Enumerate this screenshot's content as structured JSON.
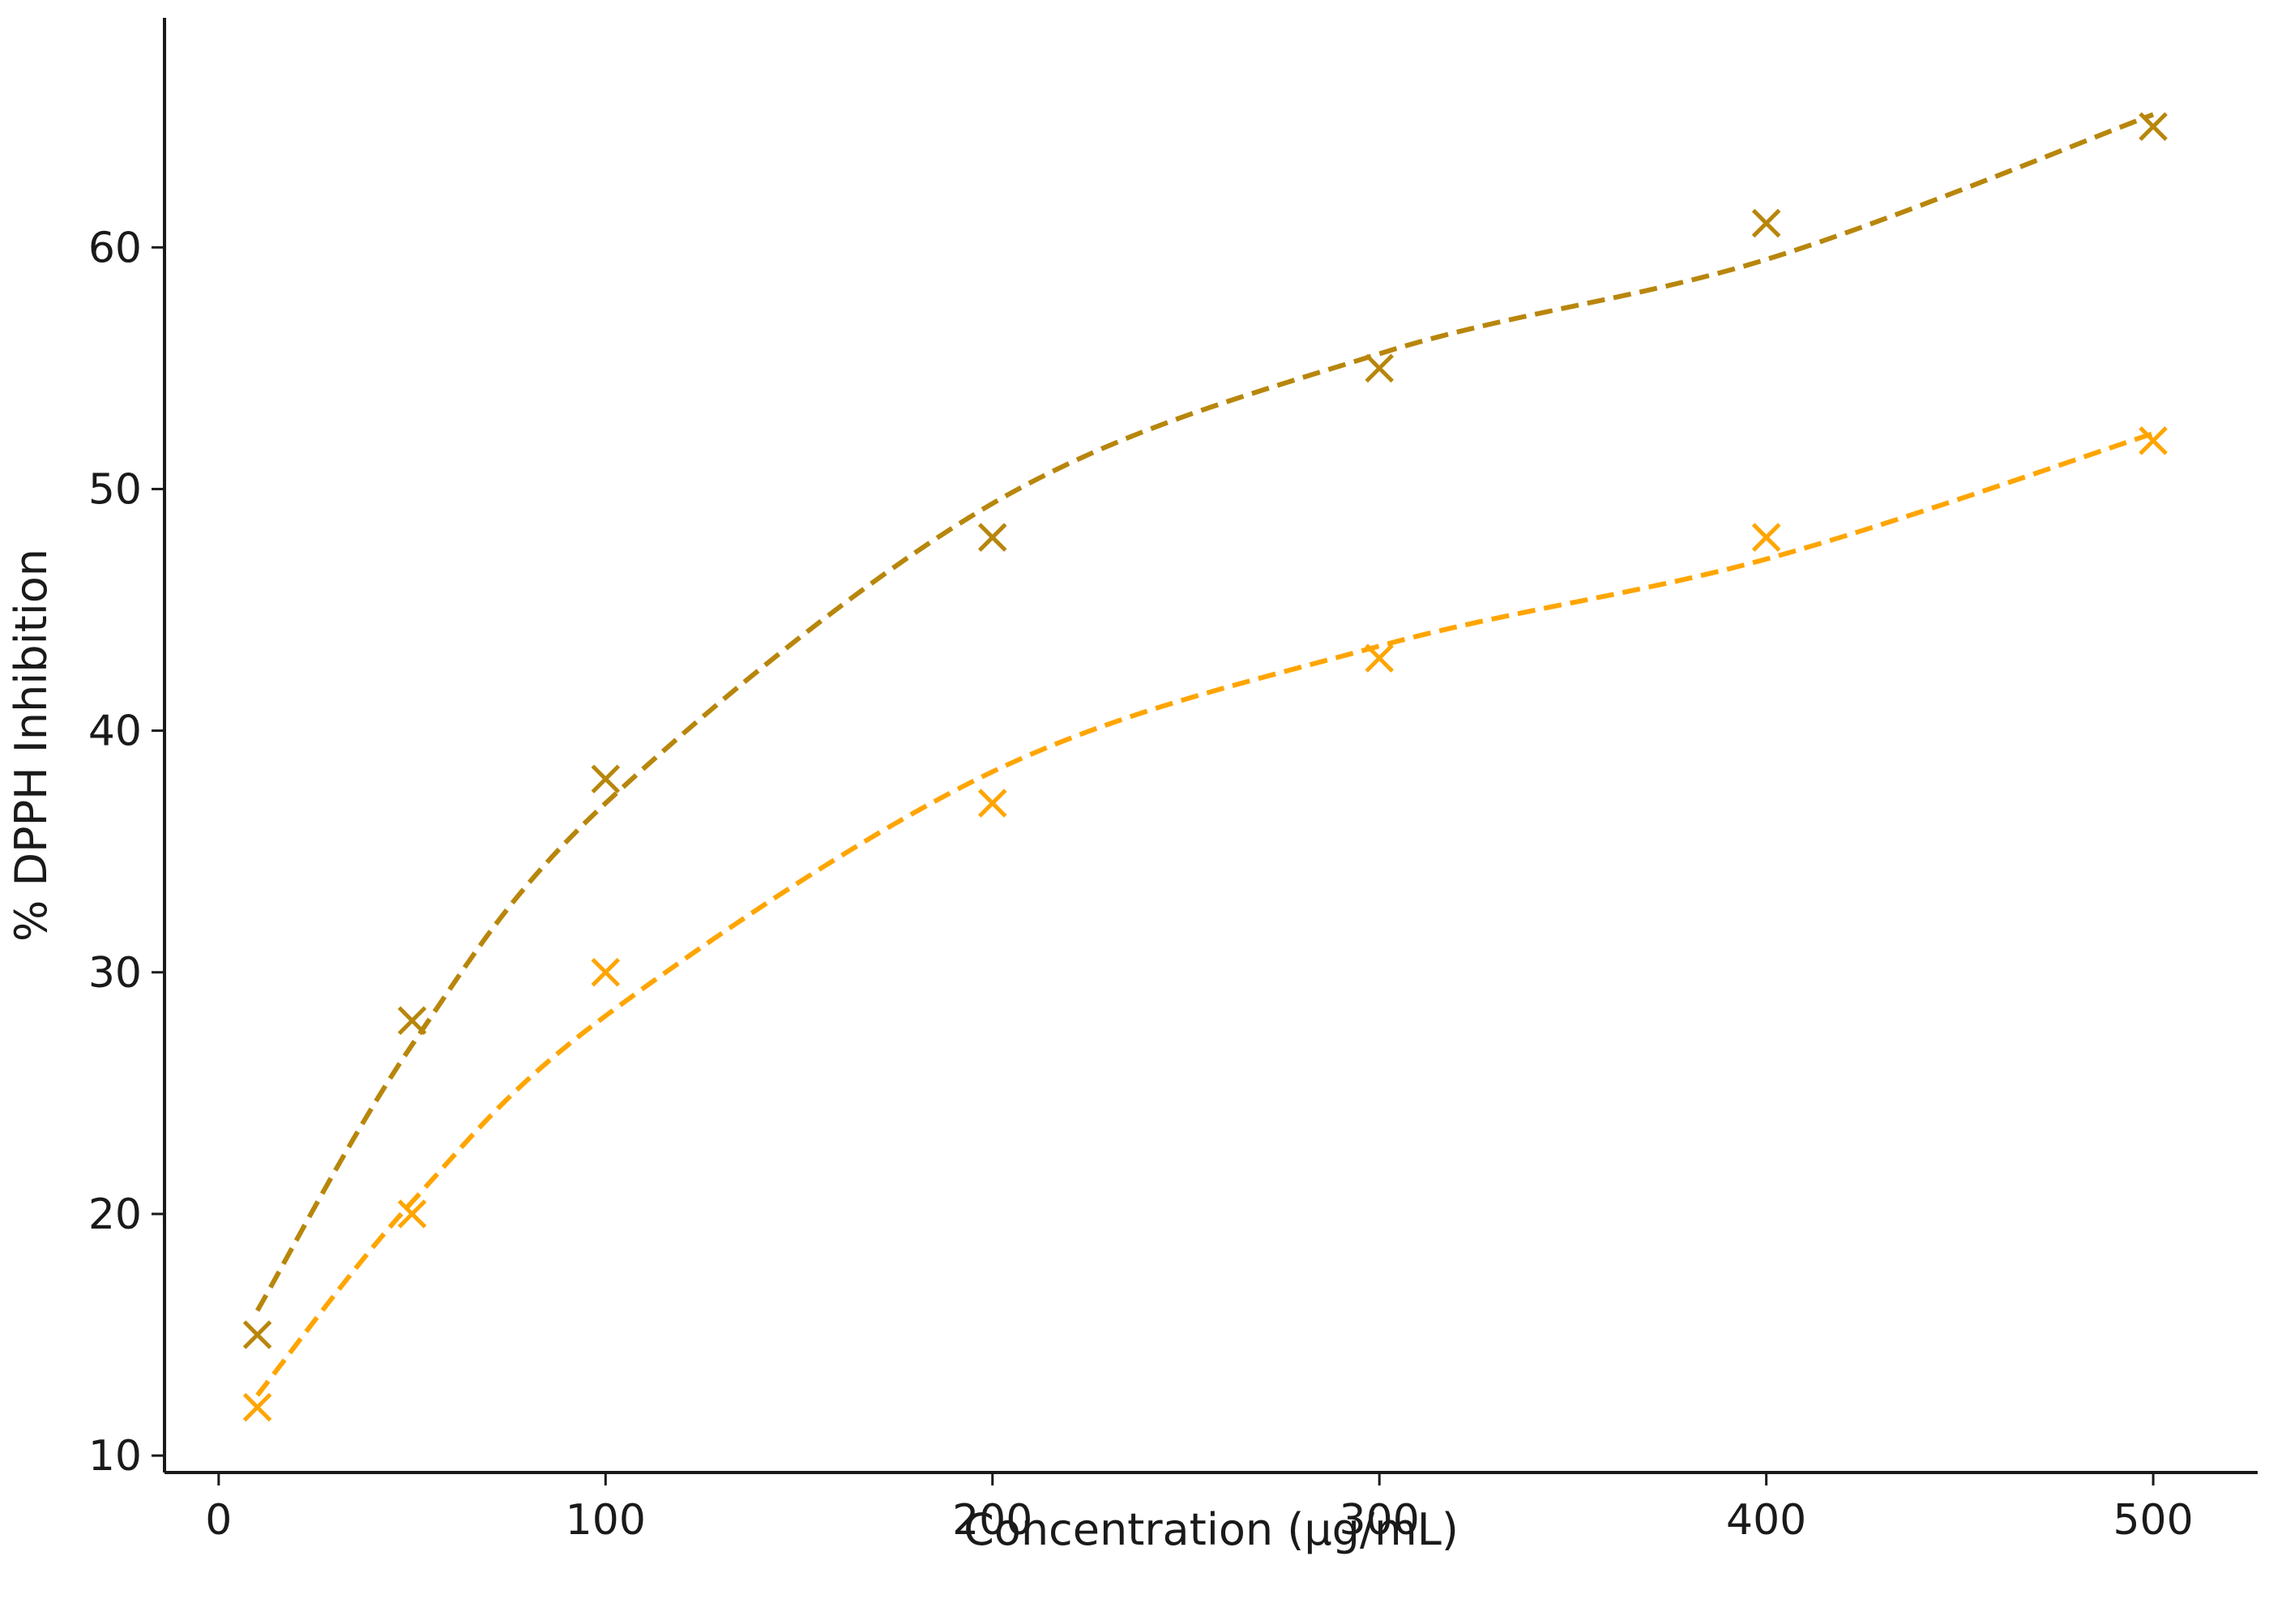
{
  "chart_data": {
    "type": "scatter",
    "title": "",
    "xlabel": "Concentration (µg/mL)",
    "ylabel": "% DPPH Inhibition",
    "xlim": [
      -14,
      527
    ],
    "ylim": [
      9.3,
      69.5
    ],
    "xticks": [
      0,
      100,
      200,
      300,
      400,
      500
    ],
    "yticks": [
      10,
      20,
      30,
      40,
      50,
      60
    ],
    "grid": false,
    "legend": "none",
    "series": [
      {
        "color": "#b8860b",
        "marker": "x",
        "fit_line": "dashed",
        "x": [
          10,
          50,
          100,
          200,
          300,
          400,
          500
        ],
        "y": [
          15,
          28,
          38,
          48,
          55,
          61,
          65
        ],
        "fit_y": [
          16,
          27,
          37,
          49.4,
          55.6,
          59.5,
          65.5
        ]
      },
      {
        "color": "#ffa500",
        "marker": "x",
        "fit_line": "dashed",
        "x": [
          10,
          50,
          100,
          200,
          300,
          400,
          500
        ],
        "y": [
          12,
          20,
          30,
          37,
          43,
          48,
          52
        ],
        "fit_y": [
          12.5,
          20.5,
          28.2,
          38.3,
          43.5,
          47.1,
          52.3
        ]
      }
    ]
  }
}
